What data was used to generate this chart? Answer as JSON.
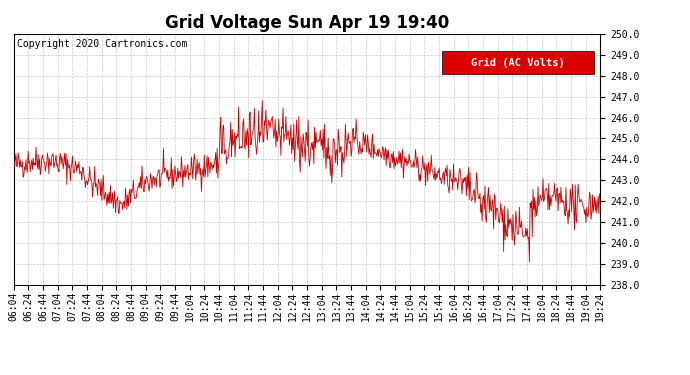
{
  "title": "Grid Voltage Sun Apr 19 19:40",
  "copyright": "Copyright 2020 Cartronics.com",
  "legend_label": "Grid (AC Volts)",
  "legend_bg": "#dd0000",
  "legend_fg": "#ffffff",
  "line_color": "#cc0000",
  "bg_color": "#ffffff",
  "plot_bg": "#ffffff",
  "ylim": [
    238.0,
    250.0
  ],
  "yticks": [
    238.0,
    239.0,
    240.0,
    241.0,
    242.0,
    243.0,
    244.0,
    245.0,
    246.0,
    247.0,
    248.0,
    249.0,
    250.0
  ],
  "xtick_labels": [
    "06:04",
    "06:24",
    "06:44",
    "07:04",
    "07:24",
    "07:44",
    "08:04",
    "08:24",
    "08:44",
    "09:04",
    "09:24",
    "09:44",
    "10:04",
    "10:24",
    "10:44",
    "11:04",
    "11:24",
    "11:44",
    "12:04",
    "12:24",
    "12:44",
    "13:04",
    "13:24",
    "13:44",
    "14:04",
    "14:24",
    "14:44",
    "15:04",
    "15:24",
    "15:44",
    "16:04",
    "16:24",
    "16:44",
    "17:04",
    "17:24",
    "17:44",
    "18:04",
    "18:24",
    "18:44",
    "19:04",
    "19:24"
  ],
  "grid_color": "#bbbbbb",
  "title_fontsize": 12,
  "tick_fontsize": 7,
  "copyright_fontsize": 7,
  "legend_fontsize": 7.5
}
